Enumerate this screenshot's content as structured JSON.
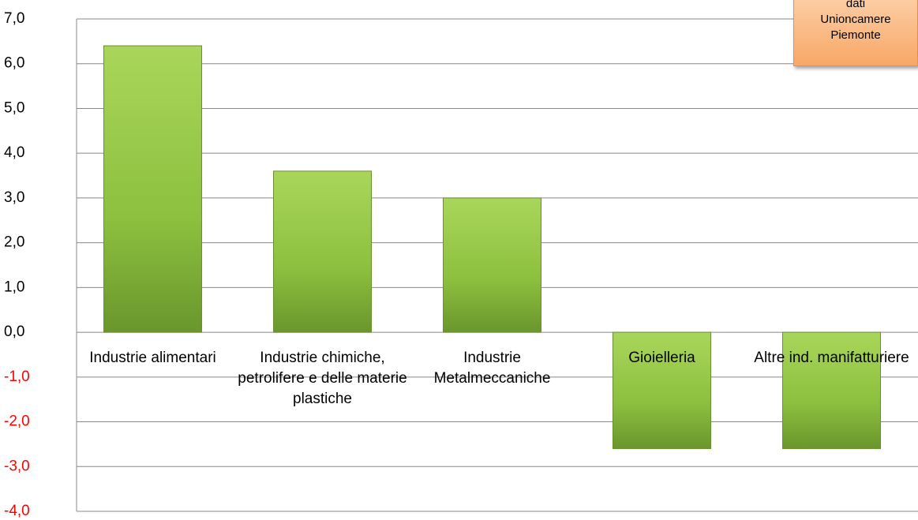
{
  "chart_data": {
    "type": "bar",
    "categories": [
      "Industrie alimentari",
      "Industrie chimiche, petrolifere e delle materie plastiche",
      "Industrie Metalmeccaniche",
      "Gioielleria",
      "Altre ind. manifatturiere"
    ],
    "values": [
      6.4,
      3.6,
      3.0,
      -2.6,
      -2.6
    ],
    "color": "#8dc03f",
    "ylim": [
      -4,
      7
    ],
    "yticks": [
      {
        "value": -4,
        "label": "-4,0"
      },
      {
        "value": -3,
        "label": "-3,0"
      },
      {
        "value": -2,
        "label": "-2,0"
      },
      {
        "value": -1,
        "label": "-1,0"
      },
      {
        "value": 0,
        "label": "0,0"
      },
      {
        "value": 1,
        "label": "1,0"
      },
      {
        "value": 2,
        "label": "2,0"
      },
      {
        "value": 3,
        "label": "3,0"
      },
      {
        "value": 4,
        "label": "4,0"
      },
      {
        "value": 5,
        "label": "5,0"
      },
      {
        "value": 6,
        "label": "6,0"
      },
      {
        "value": 7,
        "label": "7,0"
      }
    ],
    "negative_tick_color": "#ff0000",
    "grid": true,
    "annotation": [
      "dati",
      "Unioncamere",
      "Piemonte"
    ]
  }
}
